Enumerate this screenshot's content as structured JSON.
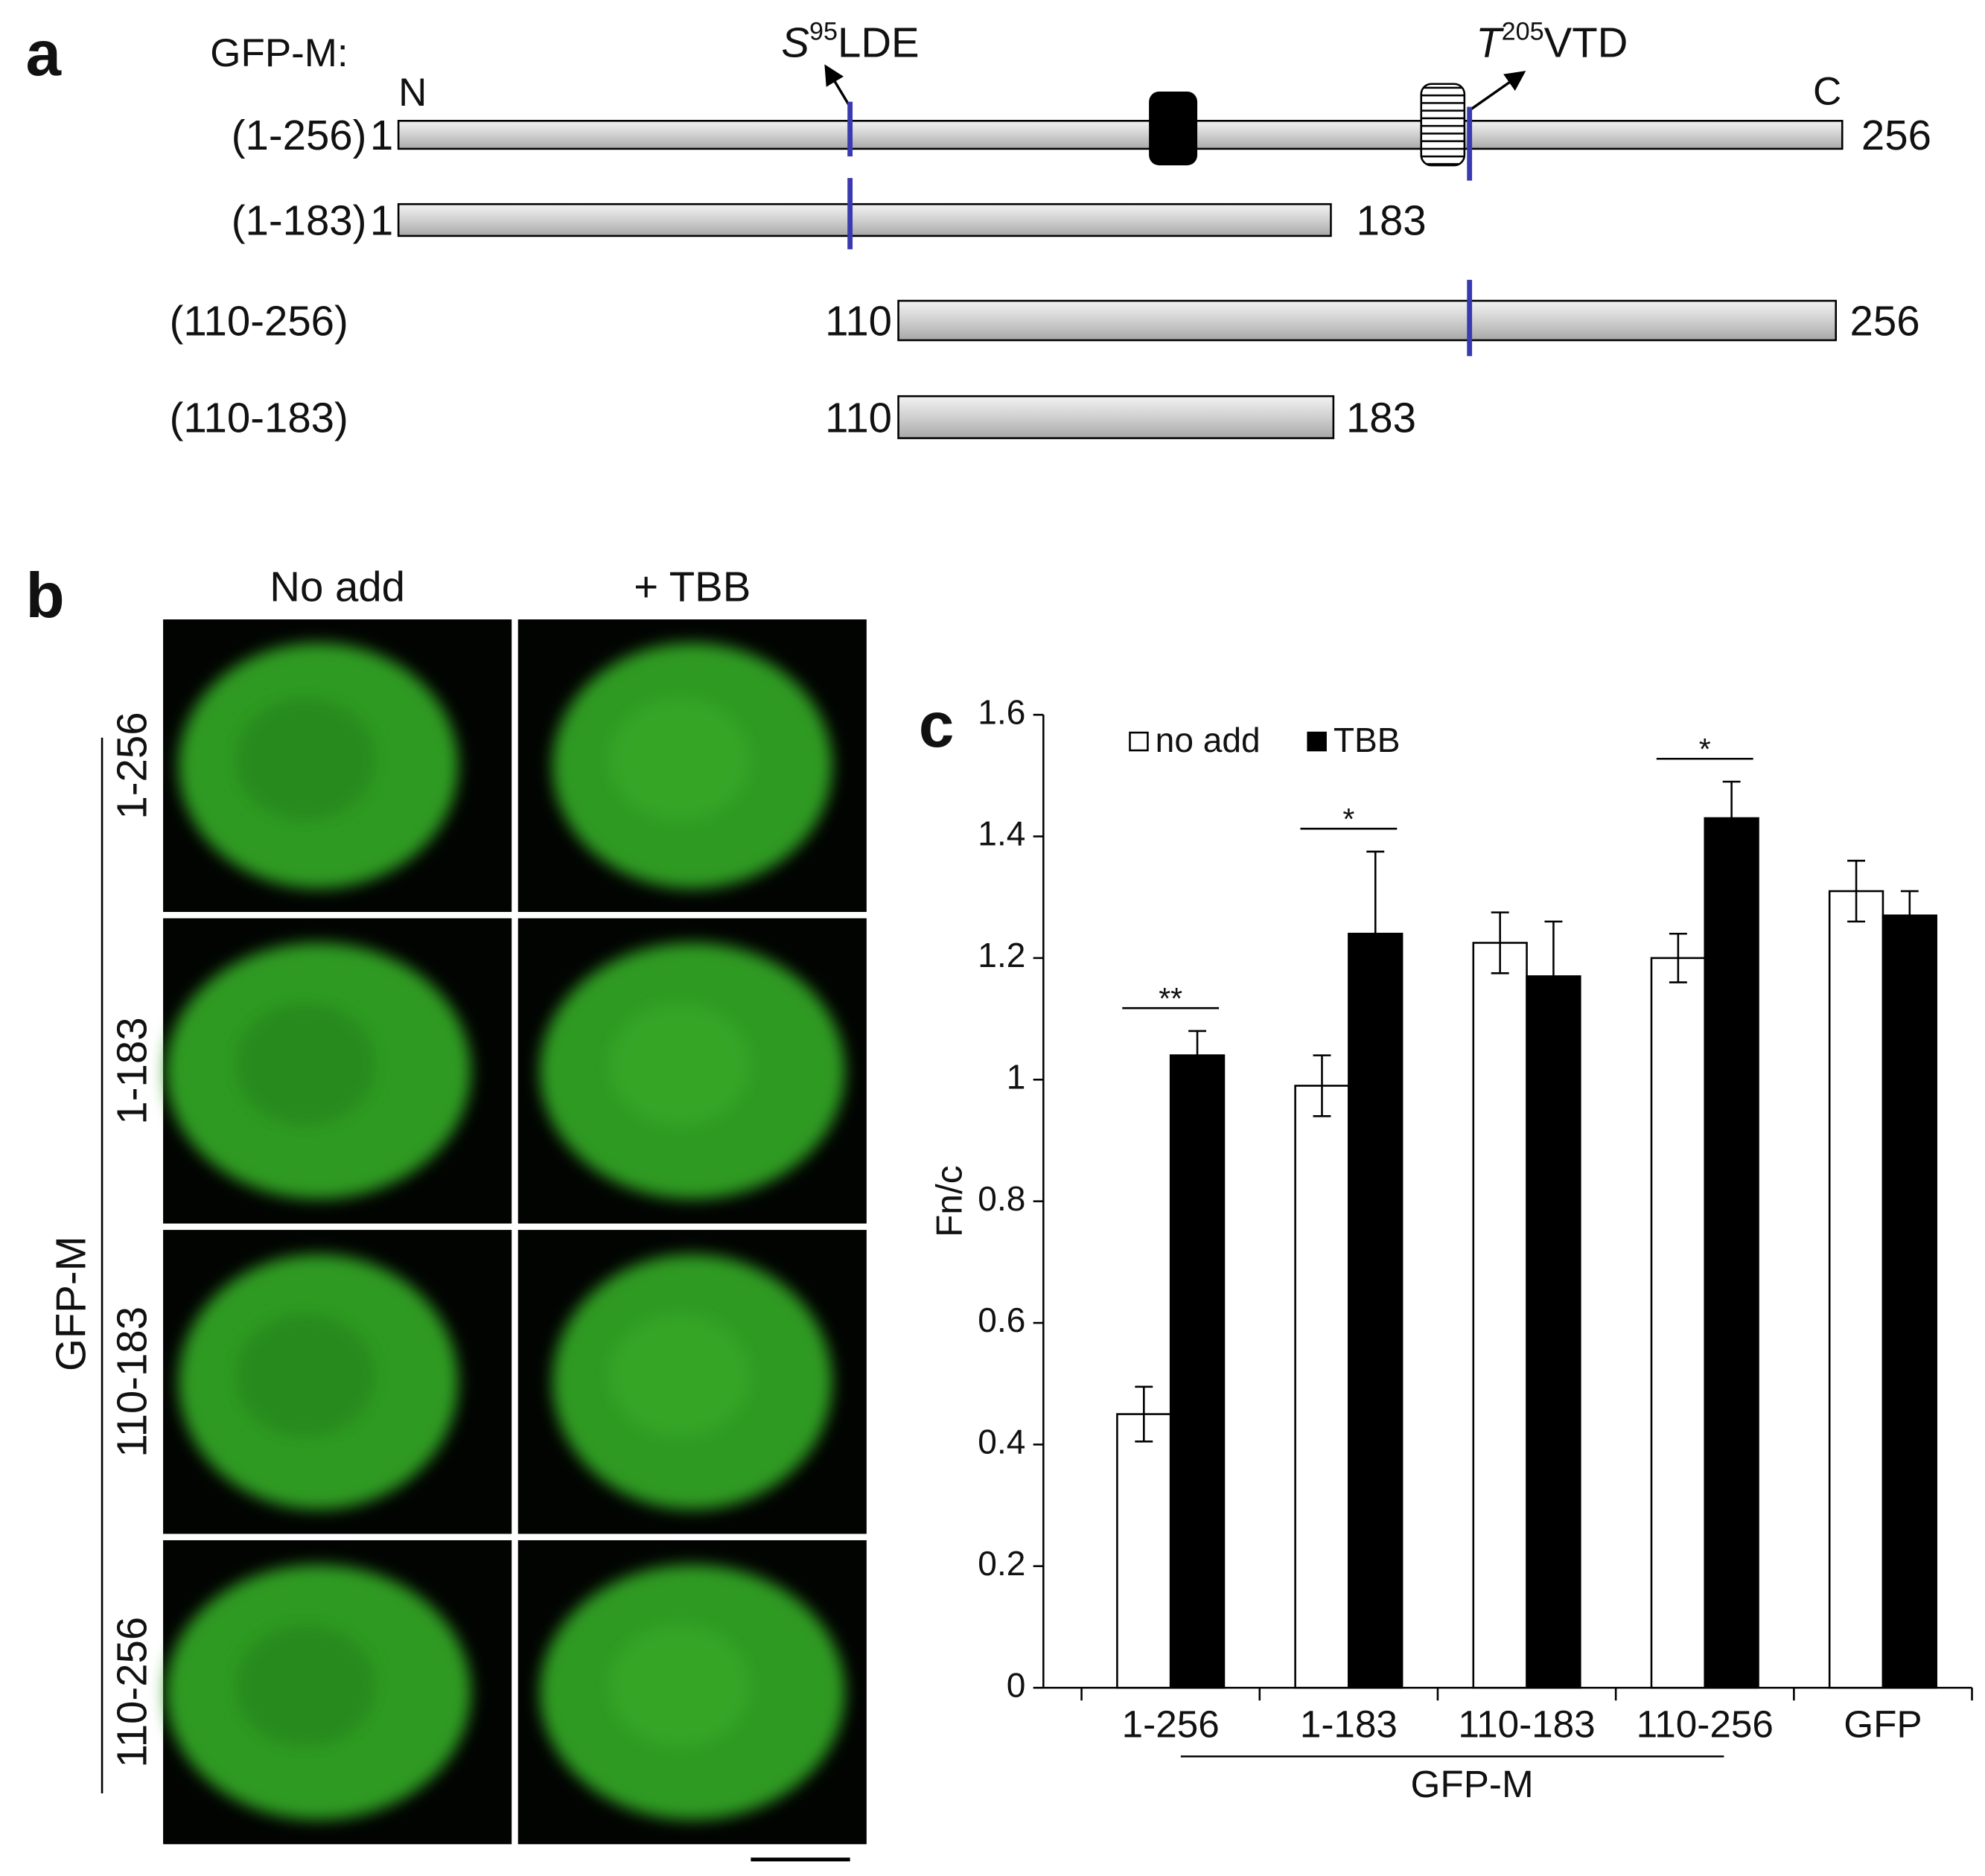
{
  "panel_a": {
    "label": "a",
    "construct_title": "GFP-M:",
    "n_label": "N",
    "c_label": "C",
    "site1": {
      "residue": "S",
      "superscript": "95",
      "rest": "LDE"
    },
    "site2": {
      "residue": "T",
      "superscript": "205",
      "rest": "VTD"
    },
    "constructs": [
      {
        "name": "(1-256)",
        "start": "1",
        "end": "256"
      },
      {
        "name": "(1-183)",
        "start": "1",
        "end": "183"
      },
      {
        "name": "(110-256)",
        "start": "110",
        "end": "256"
      },
      {
        "name": "(110-183)",
        "start": "110",
        "end": "183"
      }
    ]
  },
  "panel_b": {
    "label": "b",
    "columns": [
      "No add",
      "+ TBB"
    ],
    "rows": [
      "1-256",
      "1-183",
      "110-183",
      "110-256"
    ],
    "group": "GFP-M"
  },
  "chart_data": {
    "type": "bar",
    "panel_label": "c",
    "y_label": "Fn/c",
    "categories": [
      "1-256",
      "1-183",
      "110-183",
      "110-256",
      "GFP"
    ],
    "group_label": "GFP-M",
    "series": [
      {
        "name": "no add",
        "color": "#ffffff",
        "values": [
          0.45,
          0.99,
          1.225,
          1.2,
          1.31
        ],
        "errors": [
          0.045,
          0.05,
          0.05,
          0.04,
          0.05
        ]
      },
      {
        "name": "TBB",
        "color": "#000000",
        "values": [
          1.04,
          1.24,
          1.17,
          1.43,
          1.27
        ],
        "errors": [
          0.04,
          0.135,
          0.09,
          0.06,
          0.04
        ]
      }
    ],
    "significance": [
      "**",
      "*",
      null,
      "*",
      null
    ],
    "ylim": [
      0,
      1.6
    ],
    "yticks": [
      0,
      0.2,
      0.4,
      0.6,
      0.8,
      1,
      1.2,
      1.4,
      1.6
    ]
  }
}
